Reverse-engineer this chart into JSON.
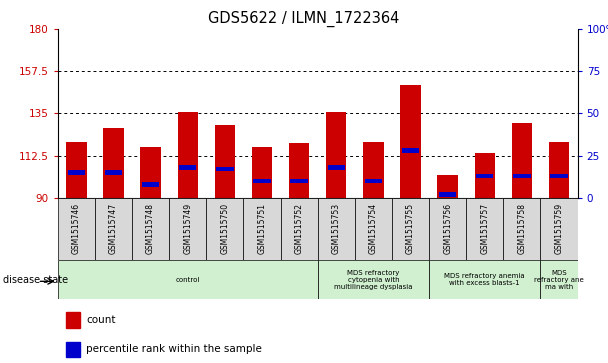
{
  "title": "GDS5622 / ILMN_1722364",
  "samples": [
    "GSM1515746",
    "GSM1515747",
    "GSM1515748",
    "GSM1515749",
    "GSM1515750",
    "GSM1515751",
    "GSM1515752",
    "GSM1515753",
    "GSM1515754",
    "GSM1515755",
    "GSM1515756",
    "GSM1515757",
    "GSM1515758",
    "GSM1515759"
  ],
  "counts": [
    120,
    127,
    117,
    136,
    129,
    117,
    119,
    136,
    120,
    150,
    102,
    114,
    130,
    120
  ],
  "percentile_ranks": [
    15,
    15,
    8,
    18,
    17,
    10,
    10,
    18,
    10,
    28,
    2,
    13,
    13,
    13
  ],
  "y_min": 90,
  "y_max": 180,
  "y_ticks_left": [
    90,
    112.5,
    135,
    157.5,
    180
  ],
  "y_ticks_right": [
    0,
    25,
    50,
    75,
    100
  ],
  "bar_color": "#cc0000",
  "dot_color": "#0000cc",
  "sample_box_color": "#d8d8d8",
  "disease_groups": [
    {
      "label": "control",
      "start": 0,
      "end": 7
    },
    {
      "label": "MDS refractory\ncytopenia with\nmultilineage dysplasia",
      "start": 7,
      "end": 10
    },
    {
      "label": "MDS refractory anemia\nwith excess blasts-1",
      "start": 10,
      "end": 13
    },
    {
      "label": "MDS\nrefractory ane\nma with",
      "start": 13,
      "end": 14
    }
  ],
  "legend_count_label": "count",
  "legend_percentile_label": "percentile rank within the sample",
  "disease_state_label": "disease state"
}
